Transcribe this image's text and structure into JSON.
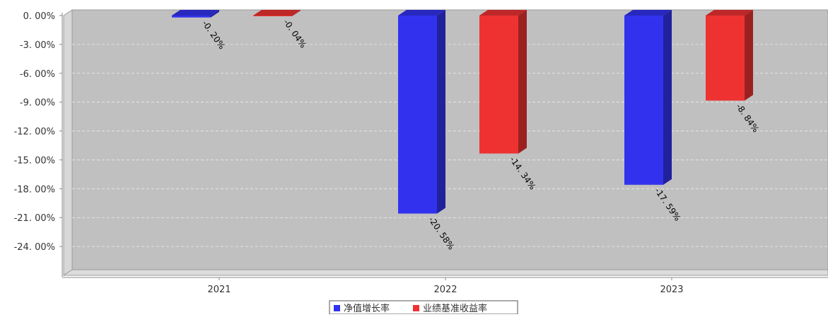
{
  "chart_data": {
    "type": "bar",
    "categories": [
      "2021",
      "2022",
      "2023"
    ],
    "series": [
      {
        "name": "净值增长率",
        "values": [
          -0.2,
          -20.58,
          -17.59
        ],
        "labels": [
          "-0. 20%",
          "-20. 58%",
          "-17. 59%"
        ]
      },
      {
        "name": "业绩基准收益率",
        "values": [
          -0.04,
          -14.34,
          -8.84
        ],
        "labels": [
          "-0. 04%",
          "-14. 34%",
          "-8. 84%"
        ]
      }
    ],
    "ylim": [
      -27,
      0
    ],
    "yticks": [
      0,
      -3,
      -6,
      -9,
      -12,
      -15,
      -18,
      -21,
      -24
    ],
    "yticklabels": [
      "0. 00%",
      "-3. 00%",
      "-6. 00%",
      "-9. 00%",
      "-12. 00%",
      "-15. 00%",
      "-18. 00%",
      "-21. 00%",
      "-24. 00%"
    ],
    "grid": true,
    "legend_position": "bottom-center",
    "colors": {
      "series_1": "#3232ee",
      "series_2": "#ee3232",
      "plot_background": "#c0c0c0"
    }
  }
}
